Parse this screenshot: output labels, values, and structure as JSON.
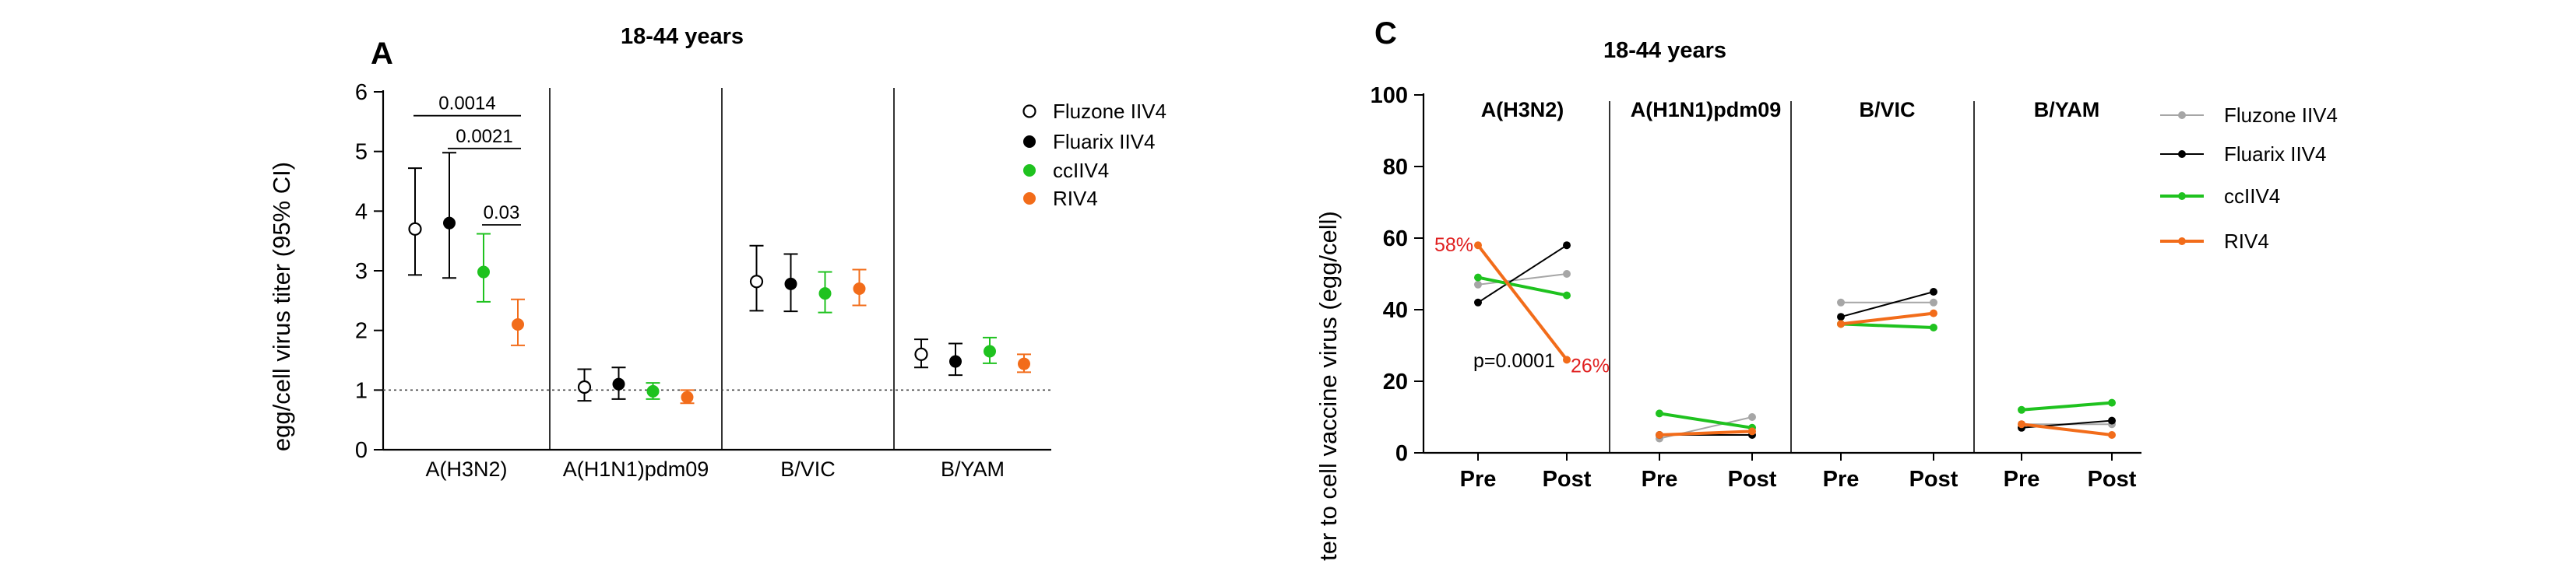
{
  "colors": {
    "fluzone": "#000000",
    "fluarix": "#000000",
    "cciiv4": "#1fc21f",
    "riv4": "#f26c1a",
    "c_fluzone": "#a6a6a6",
    "c_fluarix": "#000000",
    "c_cciiv4": "#1fc21f",
    "c_riv4": "#f26c1a",
    "red_text": "#e02020"
  },
  "chart_data": [
    {
      "type": "scatter",
      "panel_letter": "A",
      "title": "18-44 years",
      "ylabel": "egg/cell virus titer (95% CI)",
      "ylim": [
        0,
        6
      ],
      "yticks": [
        "0",
        "1",
        "2",
        "3",
        "4",
        "5",
        "6"
      ],
      "reference_line": 1,
      "categories": [
        "A(H3N2)",
        "A(H1N1)pdm09",
        "B/VIC",
        "B/YAM"
      ],
      "series": [
        {
          "name": "Fluzone IIV4",
          "marker": "open-circle",
          "values": [
            3.7,
            1.05,
            2.82,
            1.6
          ],
          "lower": [
            2.93,
            0.82,
            2.33,
            1.38
          ],
          "upper": [
            4.72,
            1.35,
            3.42,
            1.85
          ]
        },
        {
          "name": "Fluarix IIV4",
          "marker": "filled-circle",
          "values": [
            3.8,
            1.1,
            2.78,
            1.48
          ],
          "lower": [
            2.88,
            0.85,
            2.32,
            1.25
          ],
          "upper": [
            4.98,
            1.38,
            3.28,
            1.78
          ]
        },
        {
          "name": "ccIIV4",
          "marker": "filled-circle",
          "values": [
            2.98,
            0.98,
            2.62,
            1.65
          ],
          "lower": [
            2.48,
            0.85,
            2.3,
            1.45
          ],
          "upper": [
            3.62,
            1.12,
            2.98,
            1.88
          ]
        },
        {
          "name": "RIV4",
          "marker": "filled-circle",
          "values": [
            2.1,
            0.88,
            2.7,
            1.44
          ],
          "lower": [
            1.75,
            0.78,
            2.42,
            1.3
          ],
          "upper": [
            2.52,
            1.0,
            3.02,
            1.6
          ]
        }
      ],
      "significance": [
        {
          "label": "0.0014",
          "from_series": 0,
          "to_series": 3,
          "y": 5.6
        },
        {
          "label": "0.0021",
          "from_series": 1,
          "to_series": 3,
          "y": 5.05
        },
        {
          "label": "0.03",
          "from_series": 2,
          "to_series": 3,
          "y": 3.77
        }
      ]
    },
    {
      "type": "line",
      "panel_letter": "C",
      "title": "18-44 years",
      "ylabel": "ter to cell vaccine virus (egg/cell)",
      "ylim": [
        0,
        100
      ],
      "yticks": [
        "0",
        "20",
        "40",
        "60",
        "80",
        "100"
      ],
      "x": [
        "Pre",
        "Post"
      ],
      "panels": [
        "A(H3N2)",
        "A(H1N1)pdm09",
        "B/VIC",
        "B/YAM"
      ],
      "series": [
        {
          "name": "Fluzone IIV4",
          "values": [
            [
              47,
              50
            ],
            [
              4,
              10
            ],
            [
              42,
              42
            ],
            [
              8,
              8
            ]
          ]
        },
        {
          "name": "Fluarix IIV4",
          "values": [
            [
              42,
              58
            ],
            [
              5,
              5
            ],
            [
              38,
              45
            ],
            [
              7,
              9
            ]
          ]
        },
        {
          "name": "ccIIV4",
          "values": [
            [
              49,
              44
            ],
            [
              11,
              7
            ],
            [
              36,
              35
            ],
            [
              12,
              14
            ]
          ]
        },
        {
          "name": "RIV4",
          "values": [
            [
              58,
              26
            ],
            [
              5,
              6
            ],
            [
              36,
              39
            ],
            [
              8,
              5
            ]
          ]
        }
      ],
      "annotations": {
        "pre_pct": "58%",
        "post_pct": "26%",
        "pvalue": "p=0.0001"
      }
    }
  ]
}
